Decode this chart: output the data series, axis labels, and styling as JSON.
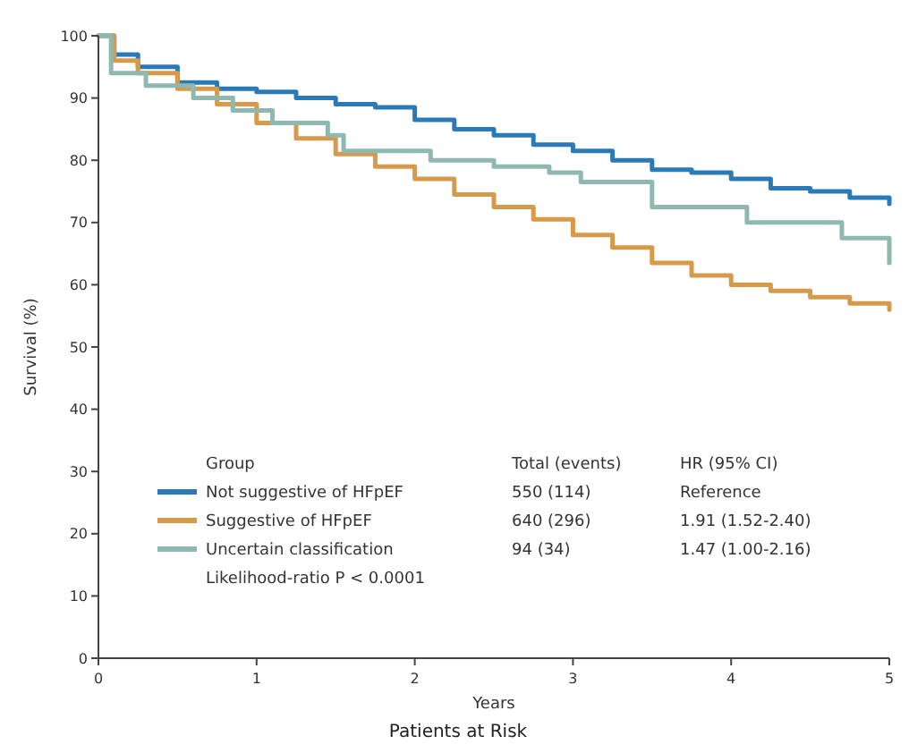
{
  "chart_data": {
    "type": "step",
    "xlabel": "Years",
    "ylabel": "Survival (%)",
    "legend_title": "Group",
    "legend": "bottom left",
    "xlim": [
      0,
      5
    ],
    "xticks": [
      0,
      1,
      2,
      3,
      4,
      5
    ],
    "ylim": [
      0,
      100
    ],
    "yticks": [
      0,
      10,
      20,
      30,
      40,
      50,
      60,
      70,
      80,
      90,
      100
    ],
    "annotations": [
      "Total (events)",
      "HR (95% CI)",
      "550 (114)",
      "Reference",
      "640 (296)",
      "1.91 (1.52-2.40)",
      "94 (34)",
      "1.47 (1.00-2.16)",
      "Likelihood-ratio P < 0.0001",
      "Patients at Risk"
    ],
    "series": [
      {
        "name": "Not suggestive of HFpEF",
        "color": "#2a7ab8",
        "x": [
          0,
          0.1,
          0.25,
          0.5,
          0.75,
          1,
          1.25,
          1.5,
          1.75,
          2,
          2.25,
          2.5,
          2.75,
          3,
          3.25,
          3.5,
          3.75,
          4,
          4.25,
          4.5,
          4.75,
          5
        ],
        "values": [
          100,
          97,
          95,
          92.5,
          91.5,
          91,
          90,
          89,
          88.5,
          86.5,
          85,
          84,
          82.5,
          81.5,
          80,
          78.5,
          78,
          77,
          75.5,
          75,
          74,
          73
        ]
      },
      {
        "name": "Suggestive of HFpEF",
        "color": "#d69a4a",
        "x": [
          0,
          0.1,
          0.25,
          0.5,
          0.75,
          1,
          1.25,
          1.5,
          1.75,
          2,
          2.25,
          2.5,
          2.75,
          3,
          3.25,
          3.5,
          3.75,
          4,
          4.25,
          4.5,
          4.75,
          5
        ],
        "values": [
          100,
          96,
          94,
          91.5,
          89,
          86,
          83.5,
          81,
          79,
          77,
          74.5,
          72.5,
          70.5,
          68,
          66,
          63.5,
          61.5,
          60,
          59,
          58,
          57,
          56
        ]
      },
      {
        "name": "Uncertain classification",
        "color": "#8fb8b0",
        "x": [
          0,
          0.08,
          0.3,
          0.6,
          0.85,
          1.1,
          1.45,
          1.55,
          2.1,
          2.5,
          2.85,
          3.05,
          3.5,
          4.1,
          4.7,
          5
        ],
        "values": [
          100,
          94,
          92,
          90,
          88,
          86,
          84,
          81.5,
          80,
          79,
          78,
          76.5,
          72.5,
          70,
          67.5,
          63.5
        ]
      }
    ]
  }
}
